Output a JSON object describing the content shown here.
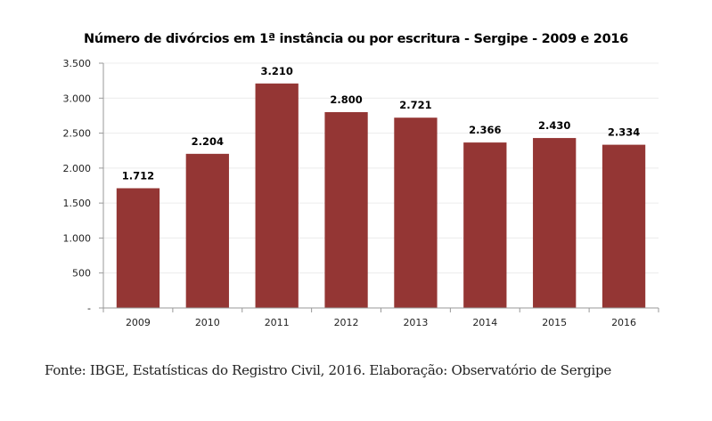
{
  "chart_data": {
    "type": "bar",
    "title": "Número de divórcios em 1ª instância ou por escritura - Sergipe - 2009 e 2016",
    "xlabel": "",
    "ylabel": "",
    "categories": [
      "2009",
      "2010",
      "2011",
      "2012",
      "2013",
      "2014",
      "2015",
      "2016"
    ],
    "values": [
      1712,
      2204,
      3210,
      2800,
      2721,
      2366,
      2430,
      2334
    ],
    "data_labels": [
      "1.712",
      "2.204",
      "3.210",
      "2.800",
      "2.721",
      "2.366",
      "2.430",
      "2.334"
    ],
    "ylim": [
      0,
      3500
    ],
    "yticks": [
      0,
      500,
      1000,
      1500,
      2000,
      2500,
      3000,
      3500
    ],
    "ytick_labels": [
      "-",
      "500",
      "1.000",
      "1.500",
      "2.000",
      "2.500",
      "3.000",
      "3.500"
    ],
    "grid": true,
    "bar_color": "#943634"
  },
  "source": "Fonte: IBGE, Estatísticas do Registro Civil, 2016. Elaboração: Observatório de Sergipe"
}
